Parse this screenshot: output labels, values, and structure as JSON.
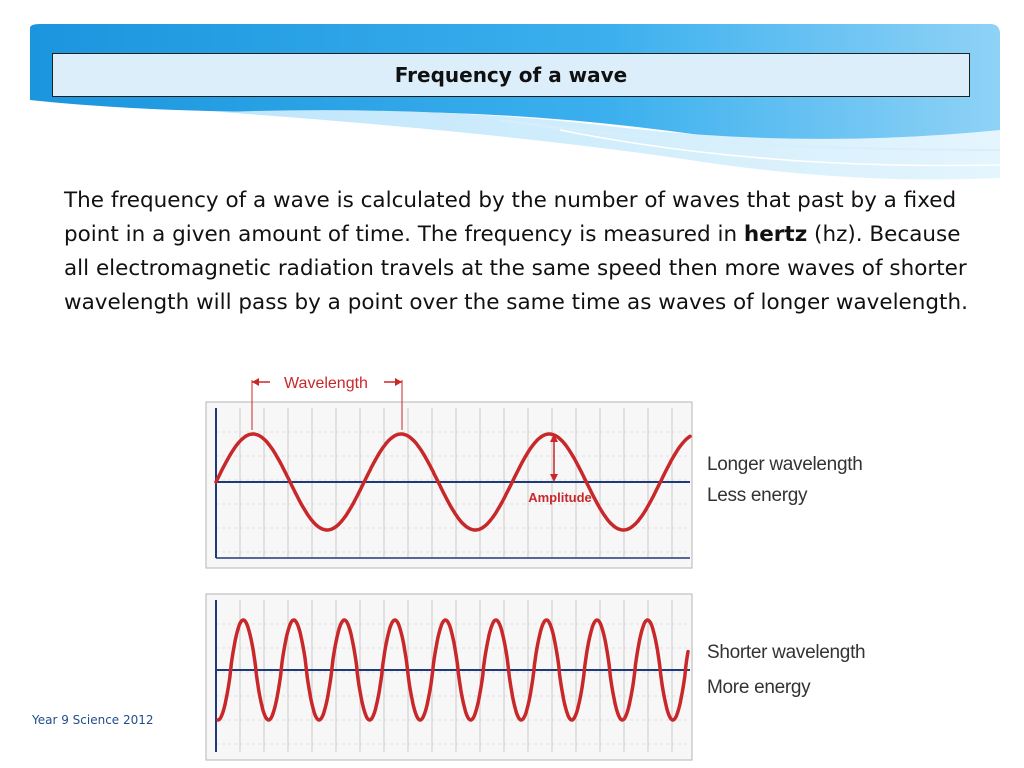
{
  "slide": {
    "title": "Frequency of a wave",
    "paragraph": {
      "before": "The frequency of a wave is calculated by the number of waves that past by a fixed point in a given amount of time. The frequency is measured in ",
      "bold": "hertz",
      "after": " (hz). Because all electromagnetic radiation travels at the same speed then more waves of shorter wavelength will pass by a point over the same time as waves of longer wavelength."
    },
    "footer": "Year 9 Science 2012"
  },
  "diagrams": {
    "long": {
      "wavelength_label": "Wavelength",
      "amplitude_label": "Amplitude",
      "caption_1": "Longer wavelength",
      "caption_2": "Less energy",
      "cycles": 3.2
    },
    "short": {
      "caption_1": "Shorter wavelength",
      "caption_2": "More energy",
      "cycles": 9.3
    }
  },
  "colors": {
    "wave": "#c8282a",
    "axis": "#1e3a78",
    "grid": "#c9c9c9",
    "header_blue": "#1e9be0"
  }
}
